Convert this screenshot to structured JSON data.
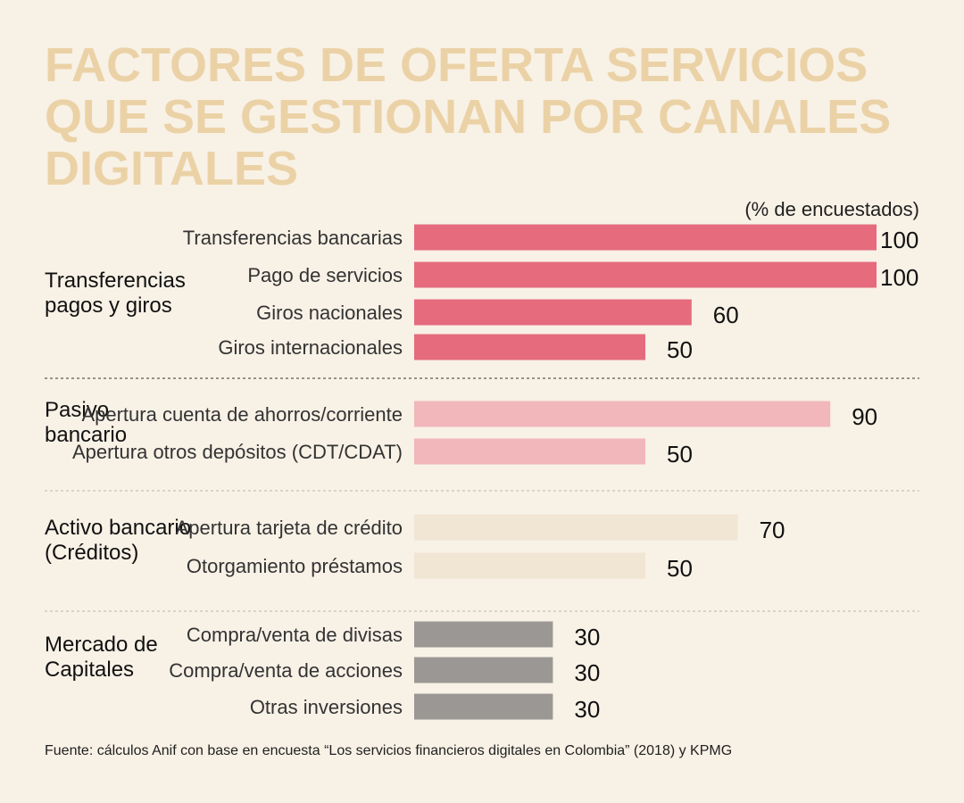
{
  "title_lines": [
    "FACTORES DE OFERTA SERVICIOS",
    "QUE SE GESTIONAN POR  CANALES",
    "DIGITALES"
  ],
  "source": "Fuente: cálculos Anif con base en encuesta “Los servicios financieros digitales en Colombia” (2018) y KPMG",
  "colors": {
    "background": "#f8f1e6",
    "title": "#ebd2a6"
  },
  "chart_data": {
    "type": "bar",
    "orientation": "horizontal",
    "unit_label": "(% de encuestados)",
    "xlim": [
      0,
      100
    ],
    "grid": false,
    "groups": [
      {
        "label": [
          "Transferencias",
          "pagos y giros"
        ],
        "color": "#e56b7d",
        "items": [
          {
            "label": "Transferencias bancarias",
            "value": 100
          },
          {
            "label": "Pago de servicios",
            "value": 100
          },
          {
            "label": "Giros nacionales",
            "value": 60
          },
          {
            "label": "Giros internacionales",
            "value": 50
          }
        ]
      },
      {
        "label": [
          "Pasivo",
          "bancario"
        ],
        "color": "#f1b7bb",
        "items": [
          {
            "label": "Apertura cuenta de ahorros/corriente",
            "value": 90
          },
          {
            "label": "Apertura otros depósitos (CDT/CDAT)",
            "value": 50
          }
        ]
      },
      {
        "label": [
          "Activo bancario",
          "(Créditos)"
        ],
        "color": "#f1e5d4",
        "items": [
          {
            "label": "Apertura tarjeta de crédito",
            "value": 70
          },
          {
            "label": "Otorgamiento préstamos",
            "value": 50
          }
        ]
      },
      {
        "label": [
          "Mercado de",
          "Capitales"
        ],
        "color": "#9b9794",
        "items": [
          {
            "label": "Compra/venta de divisas",
            "value": 30
          },
          {
            "label": "Compra/venta de acciones",
            "value": 30
          },
          {
            "label": "Otras inversiones",
            "value": 30
          }
        ]
      }
    ]
  }
}
